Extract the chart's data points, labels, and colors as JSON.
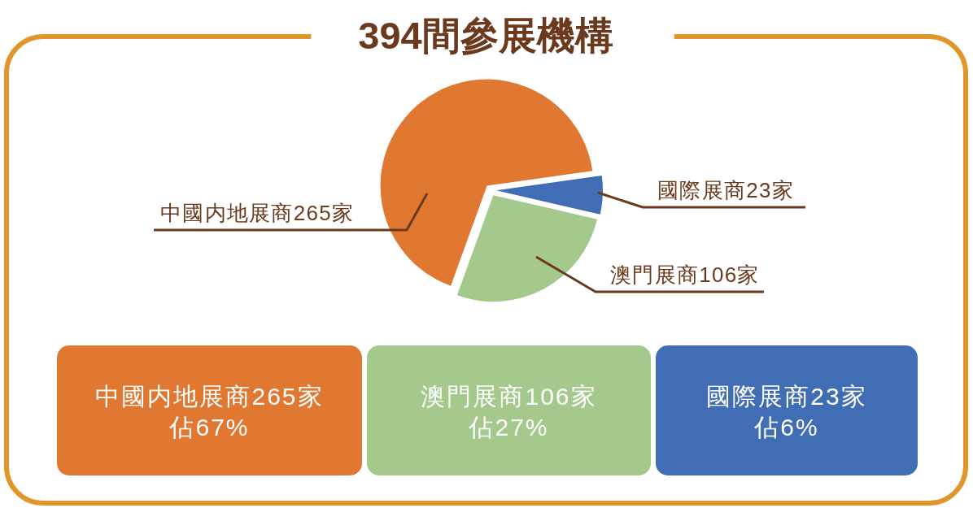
{
  "chart_data": {
    "type": "pie",
    "title": "394間參展機構",
    "categories": [
      "中國内地展商265家",
      "澳門展商106家",
      "國際展商23家"
    ],
    "values": [
      265,
      106,
      23
    ],
    "colors": [
      "#e07832",
      "#a5c98c",
      "#416db5"
    ],
    "annotations": [
      "中國内地展商265家",
      "佔67%",
      "澳門展商106家",
      "佔27%",
      "國際展商23家",
      "佔6%"
    ]
  }
}
